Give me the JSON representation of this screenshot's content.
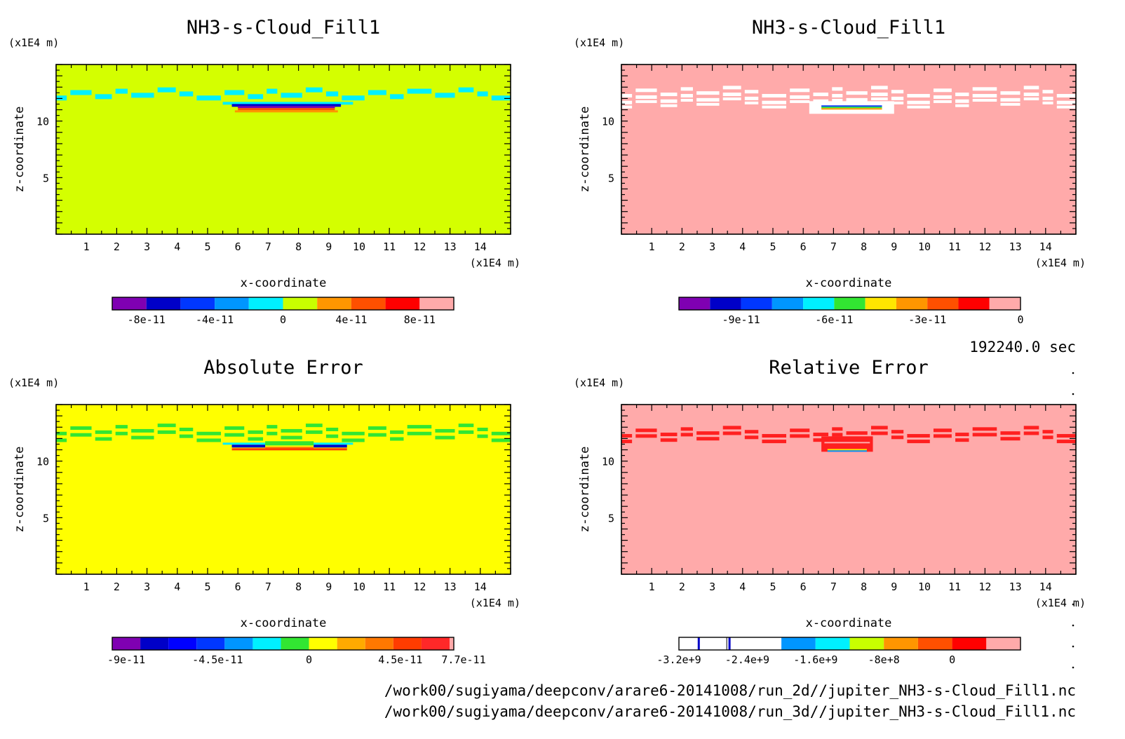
{
  "panels": [
    {
      "id": "p1",
      "title": "NH3-s-Cloud_Fill1",
      "xlabel": "x-coordinate",
      "ylabel": "z-coordinate",
      "xunit": "(x1E4 m)",
      "yunit": "(x1E4 m)",
      "background": "#d4ff00",
      "colorbar": {
        "colors": [
          "#7f00b2",
          "#0000c8",
          "#0037ff",
          "#0096ff",
          "#00f0ff",
          "#c8ff00",
          "#ff9600",
          "#ff5000",
          "#ff0000",
          "#ffaaaa"
        ],
        "labels": [
          "-8e-11",
          "-4e-11",
          "0",
          "4e-11",
          "8e-11"
        ],
        "label_pos": [
          1,
          3,
          5,
          7,
          9
        ]
      }
    },
    {
      "id": "p2",
      "title": "NH3-s-Cloud_Fill1",
      "xlabel": "x-coordinate",
      "ylabel": "z-coordinate",
      "xunit": "(x1E4 m)",
      "yunit": "(x1E4 m)",
      "background": "#ffaaaa",
      "colorbar": {
        "colors": [
          "#7f00b2",
          "#0000c8",
          "#0037ff",
          "#0096ff",
          "#00f0ff",
          "#32e632",
          "#ffe600",
          "#ff9600",
          "#ff5000",
          "#ff0000",
          "#ffaaaa"
        ],
        "labels": [
          "-9e-11",
          "-6e-11",
          "-3e-11",
          "0"
        ],
        "label_pos": [
          2,
          5,
          8,
          11
        ]
      }
    },
    {
      "id": "p3",
      "title": "Absolute Error",
      "xlabel": "x-coordinate",
      "ylabel": "z-coordinate",
      "xunit": "(x1E4 m)",
      "yunit": "(x1E4 m)",
      "background": "#ffff00",
      "colorbar": {
        "colors": [
          "#7f00b2",
          "#0000c8",
          "#0000ff",
          "#0037ff",
          "#0096ff",
          "#00f0ff",
          "#32e632",
          "#ffff00",
          "#ffaa00",
          "#ff7800",
          "#ff3c00",
          "#ff2828",
          "#ffaaaa"
        ],
        "widths": [
          1,
          1,
          1,
          1,
          1,
          1,
          1,
          1,
          1,
          1,
          1,
          1,
          0.15
        ],
        "labels": [
          "-9e-11",
          "-4.5e-11",
          "0",
          "4.5e-11",
          "7.7e-11"
        ],
        "label_pos": [
          0.5,
          3.75,
          7,
          10.25,
          12.5
        ]
      }
    },
    {
      "id": "p4",
      "title": "Relative Error",
      "xlabel": "x-coordinate",
      "ylabel": "z-coordinate",
      "xunit": "(x1E4 m)",
      "yunit": "(x1E4 m)",
      "background": "#ffaaaa",
      "colorbar": {
        "colors": [
          "#ffffff",
          "#ffffff",
          "#ffffff",
          "#0096ff",
          "#00f0ff",
          "#c8ff00",
          "#ff9600",
          "#ff5000",
          "#ff0000",
          "#ffaaaa"
        ],
        "labels": [
          "-3.2e+9",
          "-2.4e+9",
          "-1.6e+9",
          "-8e+8",
          "0"
        ],
        "label_pos": [
          0,
          2,
          4,
          6,
          8
        ]
      }
    }
  ],
  "time_label": "192240.0 sec",
  "file_paths": [
    "/work00/sugiyama/deepconv/arare6-20141008/run_2d//jupiter_NH3-s-Cloud_Fill1.nc",
    "/work00/sugiyama/deepconv/arare6-20141008/run_3d//jupiter_NH3-s-Cloud_Fill1.nc"
  ],
  "chart_data": [
    {
      "type": "heatmap",
      "title": "NH3-s-Cloud_Fill1",
      "xlabel": "x-coordinate",
      "ylabel": "z-coordinate",
      "x_unit": "(x1E4 m)",
      "z_unit": "(x1E4 m)",
      "xlim": [
        0,
        15
      ],
      "zlim": [
        0,
        15
      ],
      "x_ticks": [
        1,
        2,
        3,
        4,
        5,
        6,
        7,
        8,
        9,
        10,
        11,
        12,
        13,
        14
      ],
      "z_ticks": [
        5,
        10
      ],
      "colorbar_ticks": [
        "-8e-11",
        "-4e-11",
        "0",
        "4e-11",
        "8e-11"
      ],
      "features": [
        {
          "kind": "band",
          "z_center": 12.3,
          "value_class": "cyan"
        },
        {
          "kind": "blob",
          "x": [
            5.5,
            9.8
          ],
          "z_center": 11.2,
          "value_class": "blue/red dipole"
        }
      ]
    },
    {
      "type": "heatmap",
      "title": "NH3-s-Cloud_Fill1",
      "xlabel": "x-coordinate",
      "ylabel": "z-coordinate",
      "x_unit": "(x1E4 m)",
      "z_unit": "(x1E4 m)",
      "xlim": [
        0,
        15
      ],
      "zlim": [
        0,
        15
      ],
      "x_ticks": [
        1,
        2,
        3,
        4,
        5,
        6,
        7,
        8,
        9,
        10,
        11,
        12,
        13,
        14
      ],
      "z_ticks": [
        5,
        10
      ],
      "colorbar_ticks": [
        "-9e-11",
        "-6e-11",
        "-3e-11",
        "0"
      ],
      "features": [
        {
          "kind": "band",
          "z_center": 12.0,
          "value_class": "white"
        },
        {
          "kind": "blob",
          "x": [
            6.6,
            8.6
          ],
          "z_center": 11.2,
          "value_class": "multicolor"
        }
      ]
    },
    {
      "type": "heatmap",
      "title": "Absolute Error",
      "xlabel": "x-coordinate",
      "ylabel": "z-coordinate",
      "x_unit": "(x1E4 m)",
      "z_unit": "(x1E4 m)",
      "xlim": [
        0,
        15
      ],
      "zlim": [
        0,
        15
      ],
      "x_ticks": [
        1,
        2,
        3,
        4,
        5,
        6,
        7,
        8,
        9,
        10,
        11,
        12,
        13,
        14
      ],
      "z_ticks": [
        5,
        10
      ],
      "colorbar_ticks": [
        "-9e-11",
        "-4.5e-11",
        "0",
        "4.5e-11",
        "7.7e-11"
      ],
      "features": [
        {
          "kind": "band",
          "z_center": 12.3,
          "value_class": "green"
        },
        {
          "kind": "blob",
          "x": [
            5.5,
            9.8
          ],
          "z_center": 11.2,
          "value_class": "blue/red dipole"
        }
      ]
    },
    {
      "type": "heatmap",
      "title": "Relative Error",
      "xlabel": "x-coordinate",
      "ylabel": "z-coordinate",
      "x_unit": "(x1E4 m)",
      "z_unit": "(x1E4 m)",
      "xlim": [
        0,
        15
      ],
      "zlim": [
        0,
        15
      ],
      "x_ticks": [
        1,
        2,
        3,
        4,
        5,
        6,
        7,
        8,
        9,
        10,
        11,
        12,
        13,
        14
      ],
      "z_ticks": [
        5,
        10
      ],
      "colorbar_ticks": [
        "-3.2e+9",
        "-2.4e+9",
        "-1.6e+9",
        "-8e+8",
        "0"
      ],
      "features": [
        {
          "kind": "band",
          "z_center": 12.3,
          "value_class": "red"
        },
        {
          "kind": "blob",
          "x": [
            6.6,
            8.3
          ],
          "z_center": 11.2,
          "value_class": "red/multicolor"
        }
      ]
    }
  ]
}
